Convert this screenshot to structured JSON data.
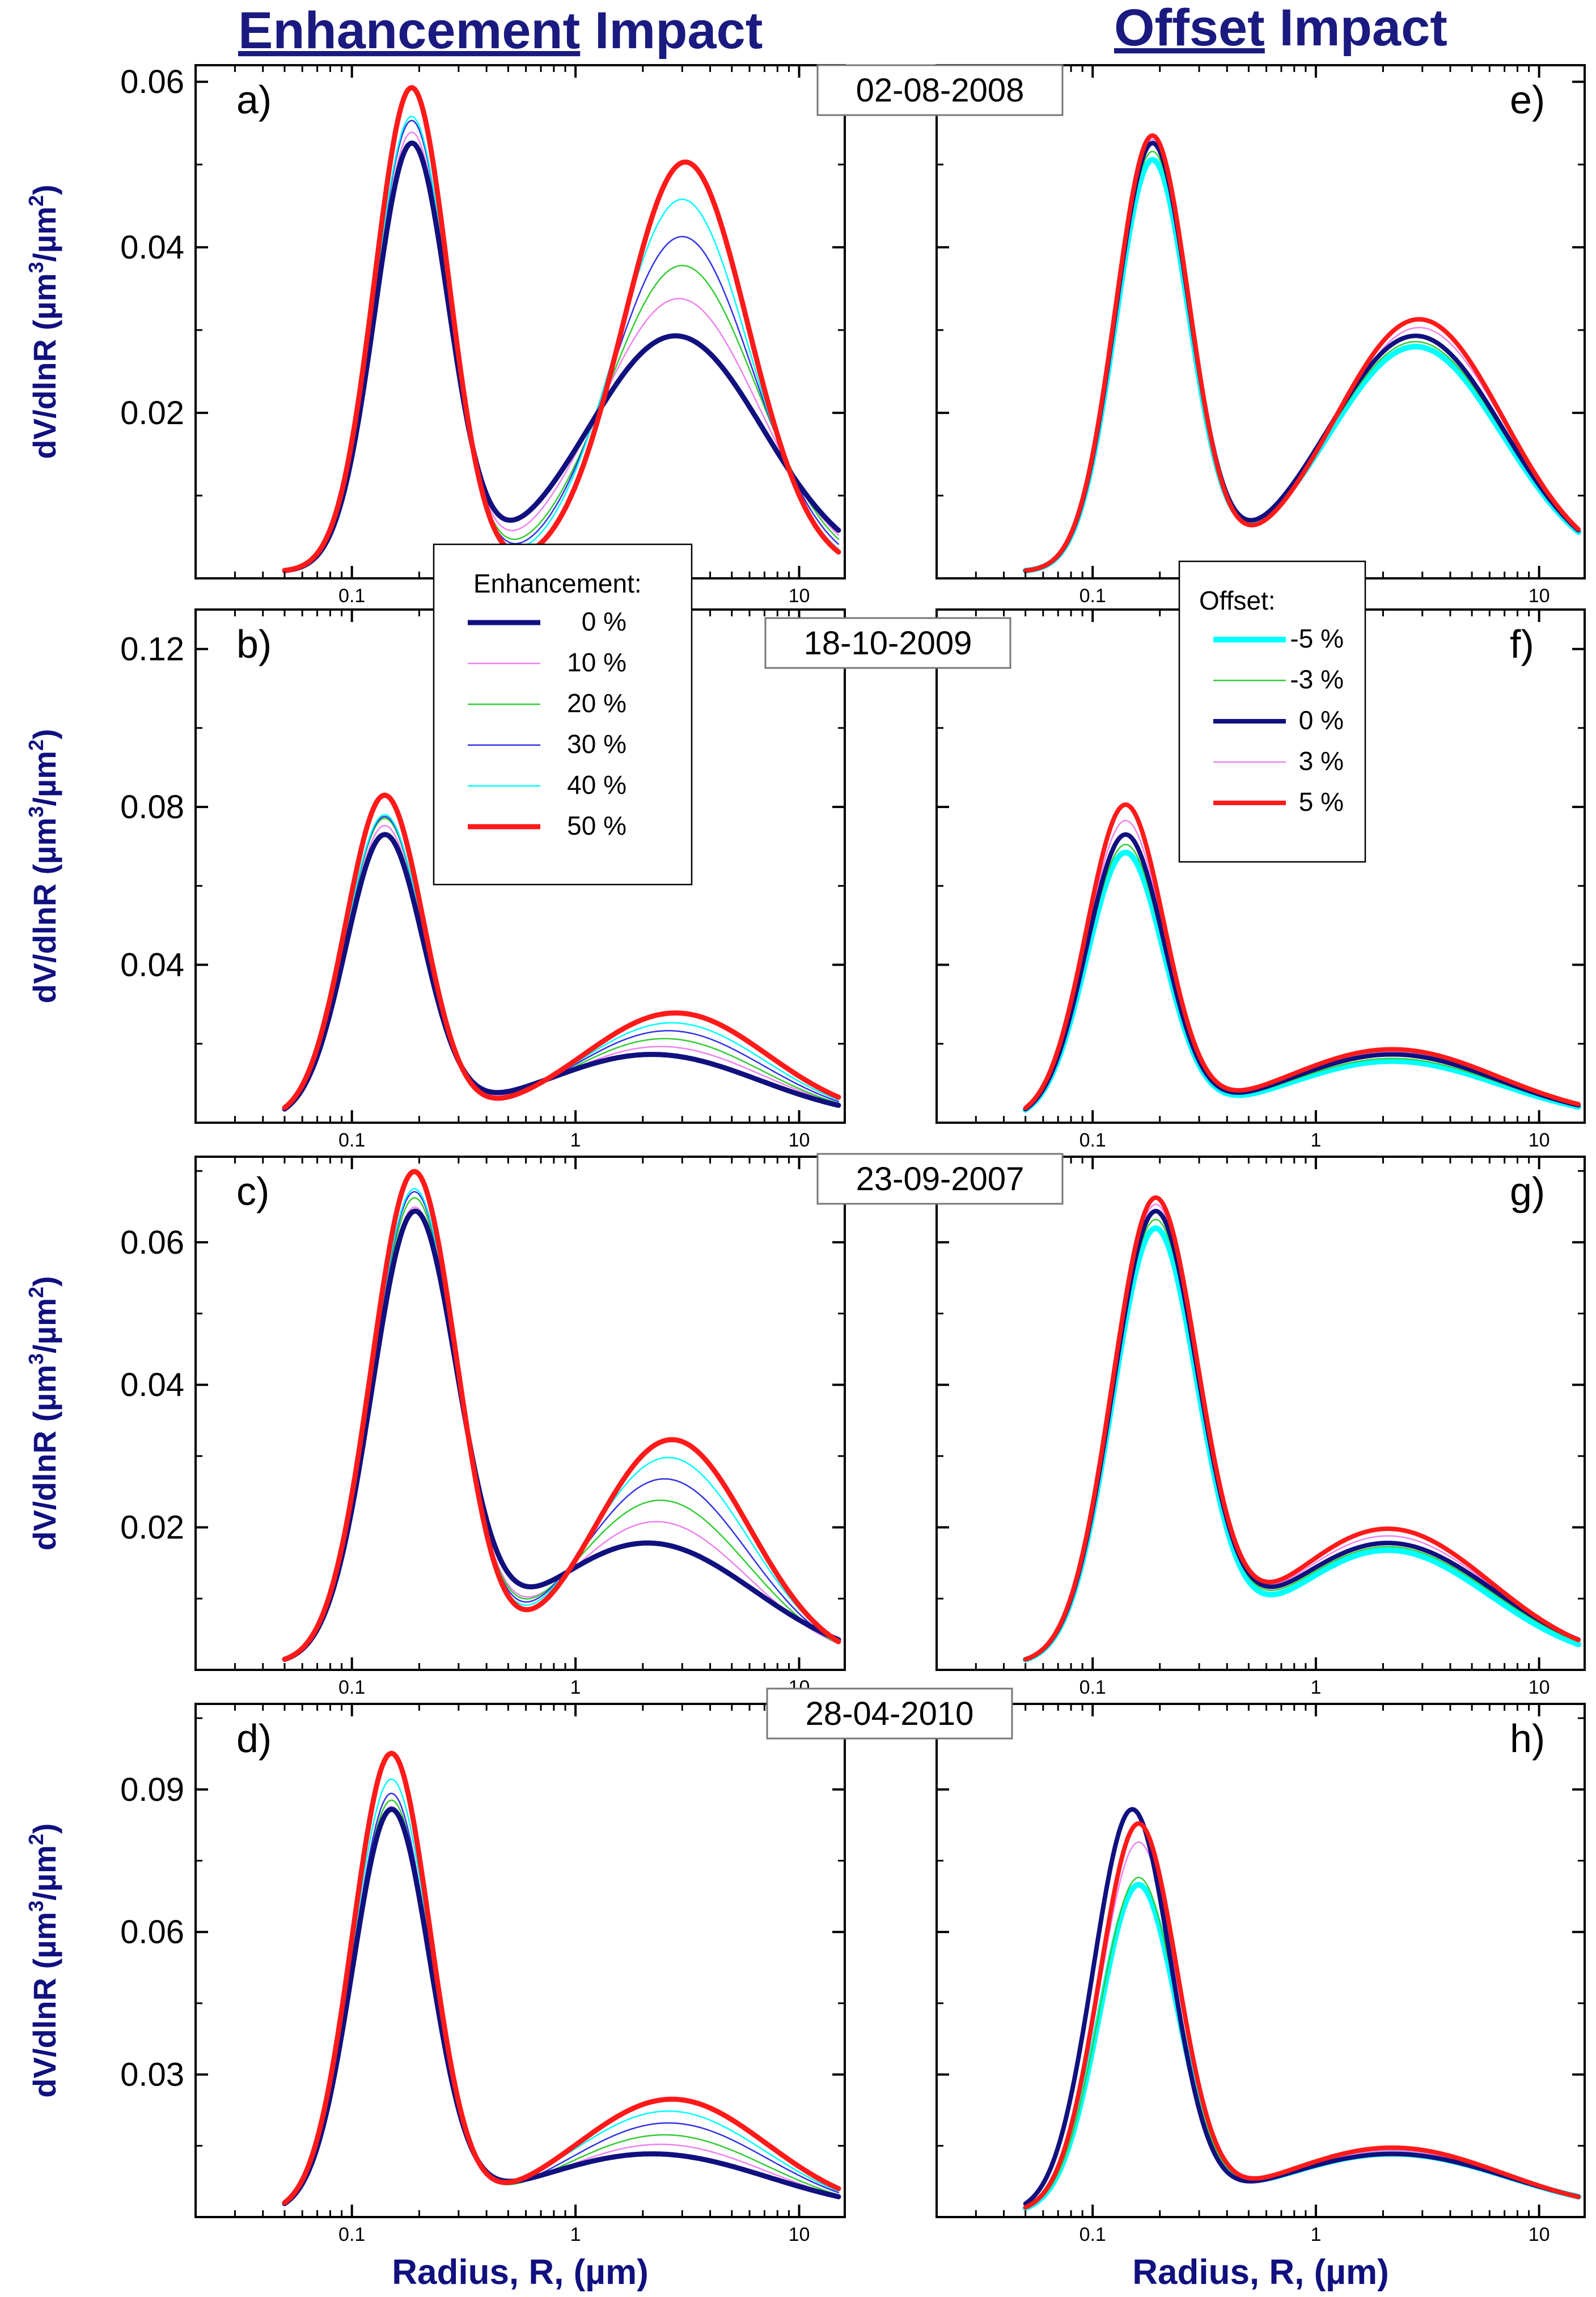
{
  "headers": {
    "left_bold": "Enhancement",
    "left_rest": " Impact",
    "right_bold": "Offset",
    "right_rest": " Impact"
  },
  "colors": {
    "title": "#1a1a80",
    "navy": "#10107f",
    "pink": "#ee82ee",
    "green": "#33cc33",
    "blue": "#3232e6",
    "cyan": "#00ffff",
    "red": "#ff1a1a",
    "frame": "#000000"
  },
  "y_label": {
    "main": "dV/dlnR (",
    "mu": "µ",
    "m3": "m",
    "sup3": "3",
    "slash": "/",
    "mu2": "µ",
    "m2": "m",
    "sup2": "2",
    "close": ")"
  },
  "x_label": {
    "prefix": "Radius, R, (",
    "mu": "µ",
    "suffix": "m)"
  },
  "x_ticks": [
    "0.1",
    "1",
    "10"
  ],
  "legend_enhancement": {
    "title": "Enhancement:",
    "entries": [
      "0 %",
      "10 %",
      "20 %",
      "30 %",
      "40 %",
      "50 %"
    ]
  },
  "legend_offset": {
    "title": "Offset:",
    "entries": [
      "-5 %",
      "-3 %",
      "0 %",
      "3 %",
      "5 %"
    ]
  },
  "chart_data": [
    {
      "type": "line",
      "panel": "a)",
      "date": "02-08-2008",
      "group": "Enhancement",
      "xscale": "log",
      "xlim": [
        0.02,
        16
      ],
      "ylim": [
        0,
        0.062
      ],
      "yticks": [
        "0.02",
        "0.04",
        "0.06"
      ],
      "ytick_values": [
        0.02,
        0.04,
        0.06
      ],
      "fine": {
        "A": 0.0515,
        "mu": 0.185,
        "s": 0.38
      },
      "series": [
        {
          "name": "0 %",
          "coarse": {
            "A": 0.0285,
            "mu": 2.8,
            "s": 0.9
          }
        },
        {
          "name": "10 %",
          "coarse": {
            "A": 0.033,
            "mu": 2.9,
            "s": 0.82
          }
        },
        {
          "name": "20 %",
          "coarse": {
            "A": 0.037,
            "mu": 3.0,
            "s": 0.76
          }
        },
        {
          "name": "30 %",
          "coarse": {
            "A": 0.0405,
            "mu": 3.0,
            "s": 0.72
          }
        },
        {
          "name": "40 %",
          "coarse": {
            "A": 0.045,
            "mu": 3.0,
            "s": 0.68
          }
        },
        {
          "name": "50 %",
          "coarse": {
            "A": 0.0495,
            "mu": 3.1,
            "s": 0.64
          }
        }
      ],
      "fine_peaks": [
        0.0515,
        0.053,
        0.0545,
        0.0545,
        0.055,
        0.0585
      ]
    },
    {
      "type": "line",
      "panel": "b)",
      "date": "18-10-2009",
      "group": "Enhancement",
      "xscale": "log",
      "xlim": [
        0.02,
        16
      ],
      "ylim": [
        0,
        0.13
      ],
      "yticks": [
        "0.04",
        "0.08",
        "0.12"
      ],
      "ytick_values": [
        0.04,
        0.08,
        0.12
      ],
      "fine": {
        "A": 0.0715,
        "mu": 0.14,
        "s": 0.4
      },
      "series": [
        {
          "name": "0 %",
          "coarse": {
            "A": 0.0165,
            "mu": 2.2,
            "s": 1.1
          }
        },
        {
          "name": "10 %",
          "coarse": {
            "A": 0.0185,
            "mu": 2.4,
            "s": 1.05
          }
        },
        {
          "name": "20 %",
          "coarse": {
            "A": 0.0205,
            "mu": 2.5,
            "s": 1.0
          }
        },
        {
          "name": "30 %",
          "coarse": {
            "A": 0.0225,
            "mu": 2.6,
            "s": 0.98
          }
        },
        {
          "name": "40 %",
          "coarse": {
            "A": 0.0245,
            "mu": 2.7,
            "s": 0.96
          }
        },
        {
          "name": "50 %",
          "coarse": {
            "A": 0.027,
            "mu": 2.8,
            "s": 0.95
          }
        }
      ],
      "fine_peaks": [
        0.0715,
        0.074,
        0.076,
        0.0765,
        0.077,
        0.082
      ]
    },
    {
      "type": "line",
      "panel": "c)",
      "date": "23-09-2007",
      "group": "Enhancement",
      "xscale": "log",
      "xlim": [
        0.02,
        16
      ],
      "ylim": [
        0,
        0.072
      ],
      "yticks": [
        "0.02",
        "0.04",
        "0.06"
      ],
      "ytick_values": [
        0.02,
        0.04,
        0.06
      ],
      "fine": {
        "A": 0.062,
        "mu": 0.19,
        "s": 0.44
      },
      "series": [
        {
          "name": "0 %",
          "coarse": {
            "A": 0.017,
            "mu": 2.1,
            "s": 1.1
          }
        },
        {
          "name": "10 %",
          "coarse": {
            "A": 0.02,
            "mu": 2.3,
            "s": 0.95
          }
        },
        {
          "name": "20 %",
          "coarse": {
            "A": 0.023,
            "mu": 2.4,
            "s": 0.9
          }
        },
        {
          "name": "30 %",
          "coarse": {
            "A": 0.026,
            "mu": 2.5,
            "s": 0.86
          }
        },
        {
          "name": "40 %",
          "coarse": {
            "A": 0.029,
            "mu": 2.6,
            "s": 0.83
          }
        },
        {
          "name": "50 %",
          "coarse": {
            "A": 0.0315,
            "mu": 2.7,
            "s": 0.8
          }
        }
      ],
      "fine_peaks": [
        0.062,
        0.0635,
        0.065,
        0.066,
        0.0665,
        0.069
      ]
    },
    {
      "type": "line",
      "panel": "d)",
      "date": "28-04-2010",
      "group": "Enhancement",
      "xscale": "log",
      "xlim": [
        0.02,
        16
      ],
      "ylim": [
        0,
        0.108
      ],
      "yticks": [
        "0.03",
        "0.06",
        "0.09"
      ],
      "ytick_values": [
        0.03,
        0.06,
        0.09
      ],
      "fine": {
        "A": 0.084,
        "mu": 0.15,
        "s": 0.4
      },
      "series": [
        {
          "name": "0 %",
          "coarse": {
            "A": 0.0125,
            "mu": 2.2,
            "s": 1.2
          }
        },
        {
          "name": "10 %",
          "coarse": {
            "A": 0.0145,
            "mu": 2.4,
            "s": 1.1
          }
        },
        {
          "name": "20 %",
          "coarse": {
            "A": 0.0165,
            "mu": 2.5,
            "s": 1.05
          }
        },
        {
          "name": "30 %",
          "coarse": {
            "A": 0.019,
            "mu": 2.6,
            "s": 1.02
          }
        },
        {
          "name": "40 %",
          "coarse": {
            "A": 0.0215,
            "mu": 2.6,
            "s": 1.0
          }
        },
        {
          "name": "50 %",
          "coarse": {
            "A": 0.024,
            "mu": 2.7,
            "s": 0.98
          }
        }
      ],
      "fine_peaks": [
        0.084,
        0.085,
        0.0865,
        0.088,
        0.091,
        0.0965
      ]
    },
    {
      "type": "line",
      "panel": "e)",
      "group": "Offset",
      "xscale": "log",
      "xlim": [
        0.02,
        16
      ],
      "ylim": [
        0,
        0.062
      ],
      "yticks": [],
      "ytick_values": [
        0.02,
        0.04,
        0.06
      ],
      "series": [
        {
          "name": "-5 %",
          "fine": {
            "A": 0.0495,
            "mu": 0.185,
            "s": 0.38
          },
          "coarse": {
            "A": 0.0272,
            "mu": 2.8,
            "s": 0.9
          }
        },
        {
          "name": "-3 %",
          "fine": {
            "A": 0.0505,
            "mu": 0.185,
            "s": 0.38
          },
          "coarse": {
            "A": 0.0278,
            "mu": 2.8,
            "s": 0.9
          }
        },
        {
          "name": "0 %",
          "fine": {
            "A": 0.0515,
            "mu": 0.185,
            "s": 0.38
          },
          "coarse": {
            "A": 0.0285,
            "mu": 2.8,
            "s": 0.9
          }
        },
        {
          "name": "3 %",
          "fine": {
            "A": 0.052,
            "mu": 0.185,
            "s": 0.38
          },
          "coarse": {
            "A": 0.0295,
            "mu": 2.9,
            "s": 0.88
          }
        },
        {
          "name": "5 %",
          "fine": {
            "A": 0.0525,
            "mu": 0.185,
            "s": 0.38
          },
          "coarse": {
            "A": 0.0305,
            "mu": 2.9,
            "s": 0.87
          }
        }
      ]
    },
    {
      "type": "line",
      "panel": "f)",
      "group": "Offset",
      "xscale": "log",
      "xlim": [
        0.02,
        16
      ],
      "ylim": [
        0,
        0.13
      ],
      "yticks": [],
      "ytick_values": [
        0.04,
        0.08,
        0.12
      ],
      "series": [
        {
          "name": "-5 %",
          "fine": {
            "A": 0.067,
            "mu": 0.14,
            "s": 0.4
          },
          "coarse": {
            "A": 0.0148,
            "mu": 2.2,
            "s": 1.1
          }
        },
        {
          "name": "-3 %",
          "fine": {
            "A": 0.069,
            "mu": 0.14,
            "s": 0.4
          },
          "coarse": {
            "A": 0.0155,
            "mu": 2.2,
            "s": 1.1
          }
        },
        {
          "name": "0 %",
          "fine": {
            "A": 0.0715,
            "mu": 0.14,
            "s": 0.4
          },
          "coarse": {
            "A": 0.0165,
            "mu": 2.2,
            "s": 1.1
          }
        },
        {
          "name": "3 %",
          "fine": {
            "A": 0.075,
            "mu": 0.14,
            "s": 0.4
          },
          "coarse": {
            "A": 0.0172,
            "mu": 2.2,
            "s": 1.1
          }
        },
        {
          "name": "5 %",
          "fine": {
            "A": 0.079,
            "mu": 0.14,
            "s": 0.4
          },
          "coarse": {
            "A": 0.0178,
            "mu": 2.2,
            "s": 1.1
          }
        }
      ]
    },
    {
      "type": "line",
      "panel": "g)",
      "group": "Offset",
      "xscale": "log",
      "xlim": [
        0.02,
        16
      ],
      "ylim": [
        0,
        0.072
      ],
      "yticks": [],
      "ytick_values": [
        0.02,
        0.04,
        0.06
      ],
      "series": [
        {
          "name": "-5 %",
          "fine": {
            "A": 0.06,
            "mu": 0.19,
            "s": 0.44
          },
          "coarse": {
            "A": 0.016,
            "mu": 2.1,
            "s": 1.05
          }
        },
        {
          "name": "-3 %",
          "fine": {
            "A": 0.061,
            "mu": 0.19,
            "s": 0.44
          },
          "coarse": {
            "A": 0.0165,
            "mu": 2.1,
            "s": 1.08
          }
        },
        {
          "name": "0 %",
          "fine": {
            "A": 0.062,
            "mu": 0.19,
            "s": 0.44
          },
          "coarse": {
            "A": 0.017,
            "mu": 2.1,
            "s": 1.1
          }
        },
        {
          "name": "3 %",
          "fine": {
            "A": 0.063,
            "mu": 0.19,
            "s": 0.44
          },
          "coarse": {
            "A": 0.018,
            "mu": 2.1,
            "s": 1.08
          }
        },
        {
          "name": "5 %",
          "fine": {
            "A": 0.064,
            "mu": 0.19,
            "s": 0.44
          },
          "coarse": {
            "A": 0.019,
            "mu": 2.1,
            "s": 1.06
          }
        }
      ]
    },
    {
      "type": "line",
      "panel": "h)",
      "group": "Offset",
      "xscale": "log",
      "xlim": [
        0.02,
        16
      ],
      "ylim": [
        0,
        0.108
      ],
      "yticks": [],
      "ytick_values": [
        0.03,
        0.06,
        0.09
      ],
      "series": [
        {
          "name": "-5 %",
          "fine": {
            "A": 0.068,
            "mu": 0.16,
            "s": 0.4
          },
          "coarse": {
            "A": 0.0125,
            "mu": 2.2,
            "s": 1.2
          }
        },
        {
          "name": "-3 %",
          "fine": {
            "A": 0.0695,
            "mu": 0.16,
            "s": 0.4
          },
          "coarse": {
            "A": 0.0128,
            "mu": 2.2,
            "s": 1.2
          }
        },
        {
          "name": "0 %",
          "fine": {
            "A": 0.084,
            "mu": 0.15,
            "s": 0.4
          },
          "coarse": {
            "A": 0.0125,
            "mu": 2.2,
            "s": 1.2
          }
        },
        {
          "name": "3 %",
          "fine": {
            "A": 0.077,
            "mu": 0.16,
            "s": 0.4
          },
          "coarse": {
            "A": 0.0132,
            "mu": 2.2,
            "s": 1.18
          }
        },
        {
          "name": "5 %",
          "fine": {
            "A": 0.081,
            "mu": 0.16,
            "s": 0.4
          },
          "coarse": {
            "A": 0.0138,
            "mu": 2.2,
            "s": 1.15
          }
        }
      ]
    }
  ]
}
